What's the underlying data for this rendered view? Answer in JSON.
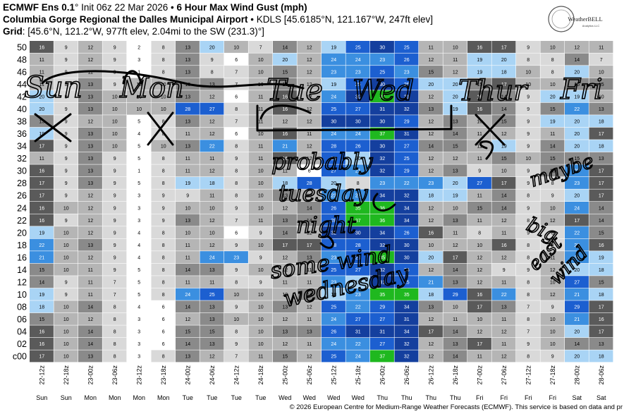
{
  "header": {
    "line1_bold": "ECMWF Ens 0.1",
    "line1_rest": "° Init 06z 22 Mar 2026 • ",
    "line1_bold2": "6 Hour Max Wind Gust (mph)",
    "line2_bold": "Columbia Gorge Regional the Dalles Municipal Airport",
    "line2_rest": " • KDLS [45.6185°N, 121.167°W, 247ft elev]",
    "line3_bold": "Grid",
    "line3_rest": ": [45.6°N, 121.2°W, 977ft elev, 2.04mi to the SW (231.3)°]"
  },
  "logo": {
    "text": "WeatherBELL",
    "sub": "Analytics LLC"
  },
  "footer": "© 2026 European Centre for Medium-Range Weather Forecasts (ECMWF). This service is based on data and pr",
  "annotations": [
    "Sun",
    "Mon",
    "Tue",
    "Wed",
    "Thur",
    "Fri",
    "probably",
    "tuesday",
    "night",
    "some wind",
    "wednesday",
    "maybe",
    "big",
    "east",
    "wind"
  ],
  "colors": {
    "white": "#ffffff",
    "light": "#d9d9d9",
    "mid": "#b5b5b5",
    "dark": "#8a8a8a",
    "darker": "#5a5a5a",
    "lightblue": "#a9d4f5",
    "blue": "#3b8fe0",
    "deepblue": "#1c5fd0",
    "navy": "#143f9e",
    "green": "#1fb81f",
    "ink": "#000000"
  },
  "chart_data": {
    "type": "heatmap",
    "title": "6 Hour Max Wind Gust (mph)",
    "y_labels": [
      "50",
      "48",
      "46",
      "44",
      "42",
      "40",
      "38",
      "36",
      "34",
      "32",
      "30",
      "28",
      "26",
      "24",
      "22",
      "20",
      "18",
      "16",
      "14",
      "12",
      "10",
      "08",
      "06",
      "04",
      "02",
      "c00"
    ],
    "x_labels": [
      "22-12z",
      "22-18z",
      "23-00z",
      "23-06z",
      "23-12z",
      "23-18z",
      "24-00z",
      "24-06z",
      "24-12z",
      "24-18z",
      "25-00z",
      "25-06z",
      "25-12z",
      "25-18z",
      "26-00z",
      "26-06z",
      "26-12z",
      "26-18z",
      "27-00z",
      "27-06z",
      "27-12z",
      "27-18z",
      "28-00z",
      "28-06z"
    ],
    "day_labels": [
      "Sun",
      "Sun",
      "Mon",
      "Mon",
      "Mon",
      "Mon",
      "Tue",
      "Tue",
      "Tue",
      "Tue",
      "Wed",
      "Wed",
      "Wed",
      "Wed",
      "Thu",
      "Thu",
      "Thu",
      "Thu",
      "Fri",
      "Fri",
      "Fri",
      "Fri",
      "Sat",
      "Sat"
    ],
    "values": [
      [
        16,
        9,
        12,
        9,
        2,
        8,
        13,
        20,
        10,
        7,
        14,
        12,
        19,
        25,
        30,
        25,
        11,
        10,
        16,
        17,
        9,
        10,
        12,
        11
      ],
      [
        11,
        9,
        12,
        9,
        3,
        8,
        13,
        9,
        6,
        10,
        20,
        12,
        24,
        24,
        23,
        26,
        12,
        11,
        19,
        20,
        8,
        8,
        14,
        7
      ],
      [
        11,
        9,
        11,
        9,
        1,
        8,
        13,
        8,
        7,
        10,
        15,
        12,
        23,
        23,
        25,
        23,
        15,
        12,
        19,
        18,
        10,
        8,
        20,
        10
      ],
      [
        11,
        8,
        13,
        9,
        10,
        10,
        13,
        13,
        7,
        10,
        15,
        12,
        19,
        25,
        30,
        25,
        20,
        20,
        15,
        17,
        10,
        10,
        15,
        15
      ],
      [
        20,
        9,
        13,
        10,
        10,
        10,
        13,
        12,
        6,
        11,
        16,
        12,
        24,
        30,
        37,
        31,
        12,
        20,
        16,
        14,
        9,
        20,
        19,
        10
      ],
      [
        20,
        9,
        13,
        10,
        10,
        10,
        28,
        27,
        8,
        11,
        16,
        12,
        25,
        27,
        31,
        32,
        13,
        19,
        16,
        14,
        9,
        15,
        22,
        13
      ],
      [
        13,
        9,
        12,
        10,
        5,
        8,
        13,
        12,
        7,
        11,
        12,
        12,
        30,
        30,
        30,
        29,
        12,
        13,
        10,
        15,
        9,
        19,
        20,
        18
      ],
      [
        19,
        9,
        13,
        10,
        4,
        8,
        11,
        12,
        6,
        10,
        16,
        11,
        24,
        24,
        37,
        31,
        12,
        14,
        11,
        12,
        9,
        11,
        20,
        17
      ],
      [
        17,
        9,
        13,
        10,
        5,
        10,
        13,
        22,
        8,
        11,
        21,
        12,
        28,
        26,
        30,
        27,
        14,
        15,
        11,
        19,
        9,
        14,
        20,
        18
      ],
      [
        11,
        9,
        13,
        9,
        5,
        8,
        11,
        11,
        9,
        11,
        16,
        12,
        26,
        20,
        32,
        25,
        12,
        12,
        11,
        15,
        10,
        15,
        15,
        13
      ],
      [
        16,
        9,
        13,
        9,
        1,
        8,
        11,
        12,
        8,
        10,
        11,
        6,
        27,
        21,
        32,
        29,
        12,
        13,
        9,
        10,
        9,
        15,
        23,
        17
      ],
      [
        17,
        9,
        13,
        9,
        5,
        8,
        19,
        18,
        8,
        10,
        18,
        28,
        20,
        8,
        23,
        22,
        23,
        20,
        27,
        17,
        9,
        8,
        23,
        17
      ],
      [
        17,
        9,
        12,
        9,
        3,
        9,
        9,
        11,
        8,
        10,
        13,
        12,
        23,
        22,
        34,
        32,
        18,
        19,
        11,
        14,
        8,
        9,
        20,
        17
      ],
      [
        16,
        10,
        12,
        9,
        3,
        9,
        10,
        10,
        9,
        10,
        12,
        14,
        26,
        35,
        36,
        34,
        12,
        10,
        15,
        14,
        9,
        10,
        24,
        14
      ],
      [
        16,
        9,
        12,
        9,
        3,
        9,
        13,
        12,
        7,
        11,
        13,
        14,
        28,
        37,
        36,
        34,
        12,
        13,
        11,
        12,
        8,
        12,
        17,
        14
      ],
      [
        19,
        10,
        12,
        9,
        4,
        8,
        10,
        10,
        6,
        9,
        14,
        12,
        32,
        30,
        34,
        26,
        16,
        11,
        8,
        11,
        9,
        8,
        22,
        15
      ],
      [
        22,
        10,
        13,
        9,
        4,
        8,
        11,
        12,
        9,
        10,
        17,
        17,
        28,
        28,
        32,
        30,
        10,
        12,
        10,
        16,
        8,
        8,
        22,
        16
      ],
      [
        21,
        10,
        12,
        9,
        4,
        8,
        11,
        24,
        23,
        9,
        12,
        13,
        23,
        29,
        35,
        30,
        20,
        17,
        12,
        12,
        8,
        11,
        21,
        19
      ],
      [
        15,
        10,
        11,
        9,
        5,
        8,
        14,
        13,
        9,
        10,
        12,
        11,
        25,
        27,
        32,
        26,
        12,
        14,
        12,
        9,
        9,
        12,
        20,
        18
      ],
      [
        14,
        9,
        11,
        7,
        5,
        8,
        11,
        11,
        8,
        9,
        11,
        11,
        23,
        19,
        31,
        25,
        21,
        13,
        12,
        11,
        8,
        10,
        27,
        15
      ],
      [
        19,
        9,
        11,
        7,
        5,
        8,
        24,
        25,
        10,
        10,
        10,
        14,
        18,
        23,
        35,
        35,
        18,
        29,
        16,
        22,
        8,
        12,
        21,
        18
      ],
      [
        18,
        10,
        14,
        8,
        4,
        6,
        14,
        13,
        9,
        10,
        13,
        12,
        25,
        22,
        29,
        34,
        13,
        10,
        17,
        13,
        7,
        9,
        29,
        17
      ],
      [
        15,
        10,
        12,
        8,
        3,
        6,
        12,
        13,
        10,
        10,
        12,
        11,
        24,
        27,
        27,
        31,
        12,
        11,
        10,
        11,
        8,
        10,
        21,
        16
      ],
      [
        16,
        10,
        14,
        8,
        3,
        6,
        15,
        15,
        8,
        10,
        13,
        13,
        26,
        31,
        31,
        34,
        17,
        14,
        12,
        12,
        7,
        10,
        20,
        17
      ],
      [
        16,
        10,
        14,
        8,
        3,
        6,
        14,
        13,
        9,
        10,
        12,
        11,
        24,
        22,
        27,
        32,
        12,
        13,
        17,
        11,
        9,
        10,
        14,
        13
      ],
      [
        17,
        10,
        13,
        8,
        3,
        8,
        13,
        12,
        7,
        11,
        15,
        12,
        25,
        24,
        37,
        32,
        12,
        14,
        11,
        12,
        8,
        9,
        20,
        18
      ]
    ]
  }
}
